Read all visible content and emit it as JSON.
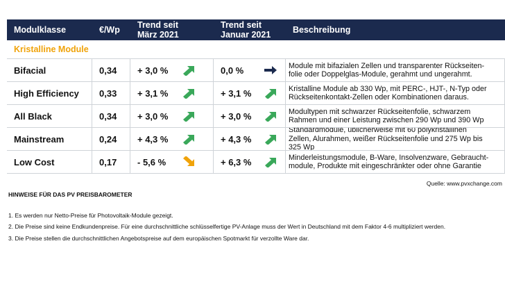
{
  "table": {
    "header": [
      "Modulklasse",
      "€/Wp",
      [
        "Trend seit",
        "März 2021"
      ],
      [
        "Trend seit",
        "Januar 2021"
      ],
      "Beschreibung"
    ],
    "section": "Kristalline Module",
    "rows": [
      [
        "Bifacial",
        "0,34",
        "+ 3,0 %",
        "0,0 %",
        [
          "Module mit bifazialen Zellen und transparenter Rückseiten-",
          "folie oder Doppelglas-Module, gerahmt und ungerahmt."
        ]
      ],
      [
        "High Efficiency",
        "0,33",
        "+ 3,1 %",
        "+ 3,1 %",
        [
          "Kristalline Module ab 330 Wp, mit PERC-, HJT-, N-Typ oder",
          "Rückseitenkontakt-Zellen oder Kombinationen daraus."
        ]
      ],
      [
        "All Black",
        "0,34",
        "+ 3,0 %",
        "+ 3,0 %",
        [
          "Modultypen mit schwarzer Rückseitenfolie, schwarzem",
          "Rahmen und einer Leistung  zwischen 290 Wp und 390 Wp"
        ]
      ],
      [
        "Mainstream",
        "0,24",
        "+ 4,3 %",
        "+ 4,3 %",
        [
          "Standardmodule, üblicherweise mit 60 polykristallinen",
          "Zellen, Alurahmen, weißer Rückseitenfolie und 275 Wp bis",
          "325 Wp"
        ]
      ],
      [
        "Low Cost",
        "0,17",
        "- 5,6 %",
        "+ 6,3 %",
        [
          "Minderleistungsmodule, B-Ware, Insolvenzware, Gebraucht-",
          "module, Produkte mit eingeschränkter oder ohne Garantie"
        ]
      ]
    ]
  },
  "source": "Quelle: www.pvxchange.com",
  "notes": {
    "title": "HINWEISE FÜR DAS PV PREISBAROMETER",
    "items": [
      "1.  Es werden nur Netto-Preise für Photovoltaik-Module gezeigt.",
      "2. Die Preise sind keine Endkundenpreise. Für eine durchschnittliche schlüsselfertige PV-Anlage muss der Wert in Deutschland mit dem Faktor 4-6 multipliziert werden.",
      "3. Die Preise stellen die durchschnittlichen Angebotspreise auf dem europäischen Spotmarkt für verzollte Ware dar."
    ]
  }
}
